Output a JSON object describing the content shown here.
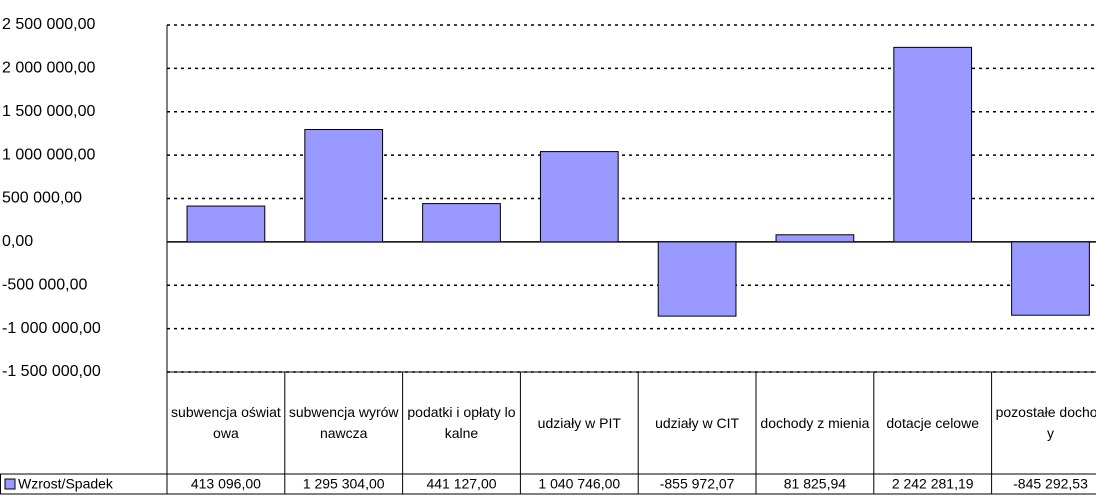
{
  "chart_data": {
    "type": "bar",
    "categories": [
      "subwencja oświatowa",
      "subwencja wyrównawcza",
      "podatki i opłaty lokalne",
      "udziały w PIT",
      "udziały w CIT",
      "dochody z mienia",
      "dotacje celowe",
      "pozostałe dochody"
    ],
    "series": [
      {
        "name": "Wzrost/Spadek",
        "color": "#9999ff",
        "values": [
          413096,
          1295304,
          441127,
          1040746,
          -855972.07,
          81825.94,
          2242281.19,
          -845292.53
        ],
        "value_labels": [
          "413 096,00",
          "1 295 304,00",
          "441 127,00",
          "1 040 746,00",
          "-855 972,07",
          "81 825,94",
          "2 242 281,19",
          "-845 292,53"
        ]
      }
    ],
    "ylim": [
      -1500000,
      2500000
    ],
    "yticks": [
      {
        "value": -1500000,
        "label": "-1 500 000,00"
      },
      {
        "value": -1000000,
        "label": "-1 000 000,00"
      },
      {
        "value": -500000,
        "label": "-500 000,00"
      },
      {
        "value": 0,
        "label": "0,00"
      },
      {
        "value": 500000,
        "label": "500 000,00"
      },
      {
        "value": 1000000,
        "label": "1 000 000,00"
      },
      {
        "value": 1500000,
        "label": "1 500 000,00"
      },
      {
        "value": 2000000,
        "label": "2 000 000,00"
      },
      {
        "value": 2500000,
        "label": "2 500 000,00"
      }
    ],
    "grid": true
  }
}
